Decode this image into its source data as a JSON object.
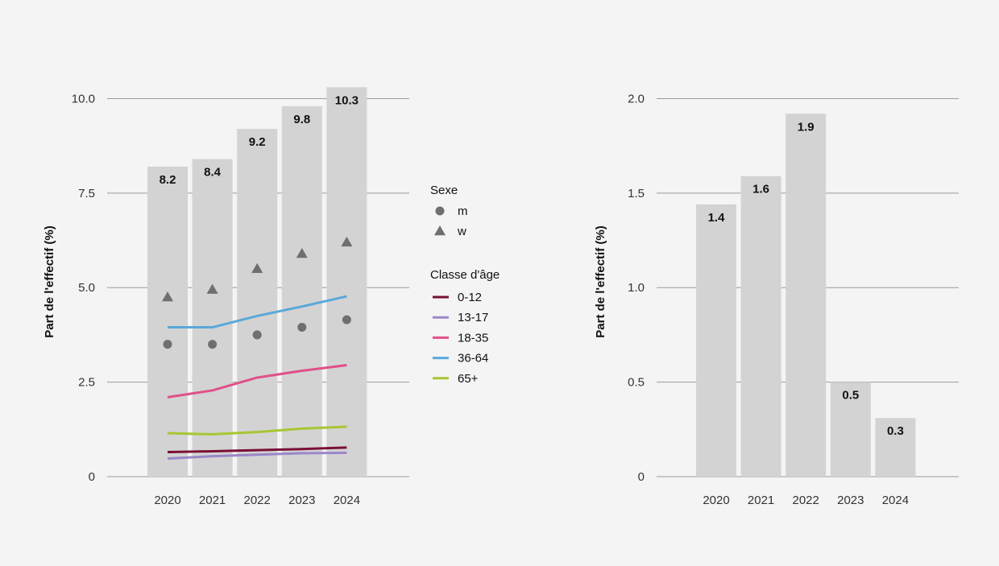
{
  "chart_data": [
    {
      "type": "bar",
      "ylabel": "Part de l'effectif (%)",
      "categories": [
        "2020",
        "2021",
        "2022",
        "2023",
        "2024"
      ],
      "values": [
        8.2,
        8.4,
        9.2,
        9.8,
        10.3
      ],
      "value_labels": [
        "8.2",
        "8.4",
        "9.2",
        "9.8",
        "10.3"
      ],
      "ylim": [
        0,
        10.5
      ],
      "yticks": [
        0,
        2.5,
        5.0,
        7.5,
        10.0
      ],
      "ytick_labels": [
        "0",
        "2.5",
        "5.0",
        "7.5",
        "10.0"
      ],
      "grid": true,
      "bar_color": "#d3d3d3",
      "legend_placement": "right",
      "legend": {
        "sex_title": "Sexe",
        "sex_items": [
          {
            "label": "m",
            "marker": "circle"
          },
          {
            "label": "w",
            "marker": "triangle"
          }
        ],
        "age_title": "Classe d'âge",
        "age_items": [
          {
            "label": "0-12",
            "color": "#7a1035"
          },
          {
            "label": "13-17",
            "color": "#9b87c9"
          },
          {
            "label": "18-35",
            "color": "#e0508a"
          },
          {
            "label": "36-64",
            "color": "#5aa8da"
          },
          {
            "label": "65+",
            "color": "#a8c632"
          }
        ]
      },
      "sex_series": [
        {
          "name": "m",
          "marker": "circle",
          "color": "#6f6f6f",
          "values": [
            3.5,
            3.5,
            3.75,
            3.95,
            4.15
          ]
        },
        {
          "name": "w",
          "marker": "triangle",
          "color": "#6f6f6f",
          "values": [
            4.75,
            4.95,
            5.5,
            5.9,
            6.2
          ]
        }
      ],
      "age_series": [
        {
          "name": "0-12",
          "color": "#7a1035",
          "values": [
            0.65,
            0.67,
            0.7,
            0.73,
            0.77
          ]
        },
        {
          "name": "13-17",
          "color": "#9b87c9",
          "values": [
            0.48,
            0.54,
            0.58,
            0.62,
            0.63
          ]
        },
        {
          "name": "18-35",
          "color": "#e0508a",
          "values": [
            2.1,
            2.28,
            2.62,
            2.8,
            2.95
          ]
        },
        {
          "name": "36-64",
          "color": "#5aa8da",
          "values": [
            3.95,
            3.95,
            4.25,
            4.5,
            4.77
          ]
        },
        {
          "name": "65+",
          "color": "#a8c632",
          "values": [
            1.15,
            1.12,
            1.18,
            1.27,
            1.32
          ]
        }
      ]
    },
    {
      "type": "bar",
      "ylabel": "Part de l'effectif (%)",
      "categories": [
        "2020",
        "2021",
        "2022",
        "2023",
        "2024"
      ],
      "values": [
        1.44,
        1.59,
        1.92,
        0.5,
        0.31
      ],
      "value_labels": [
        "1.4",
        "1.6",
        "1.9",
        "0.5",
        "0.3"
      ],
      "ylim": [
        0,
        2.1
      ],
      "yticks": [
        0,
        0.5,
        1.0,
        1.5,
        2.0
      ],
      "ytick_labels": [
        "0",
        "0.5",
        "1.0",
        "1.5",
        "2.0"
      ],
      "grid": true,
      "bar_color": "#d3d3d3"
    }
  ]
}
